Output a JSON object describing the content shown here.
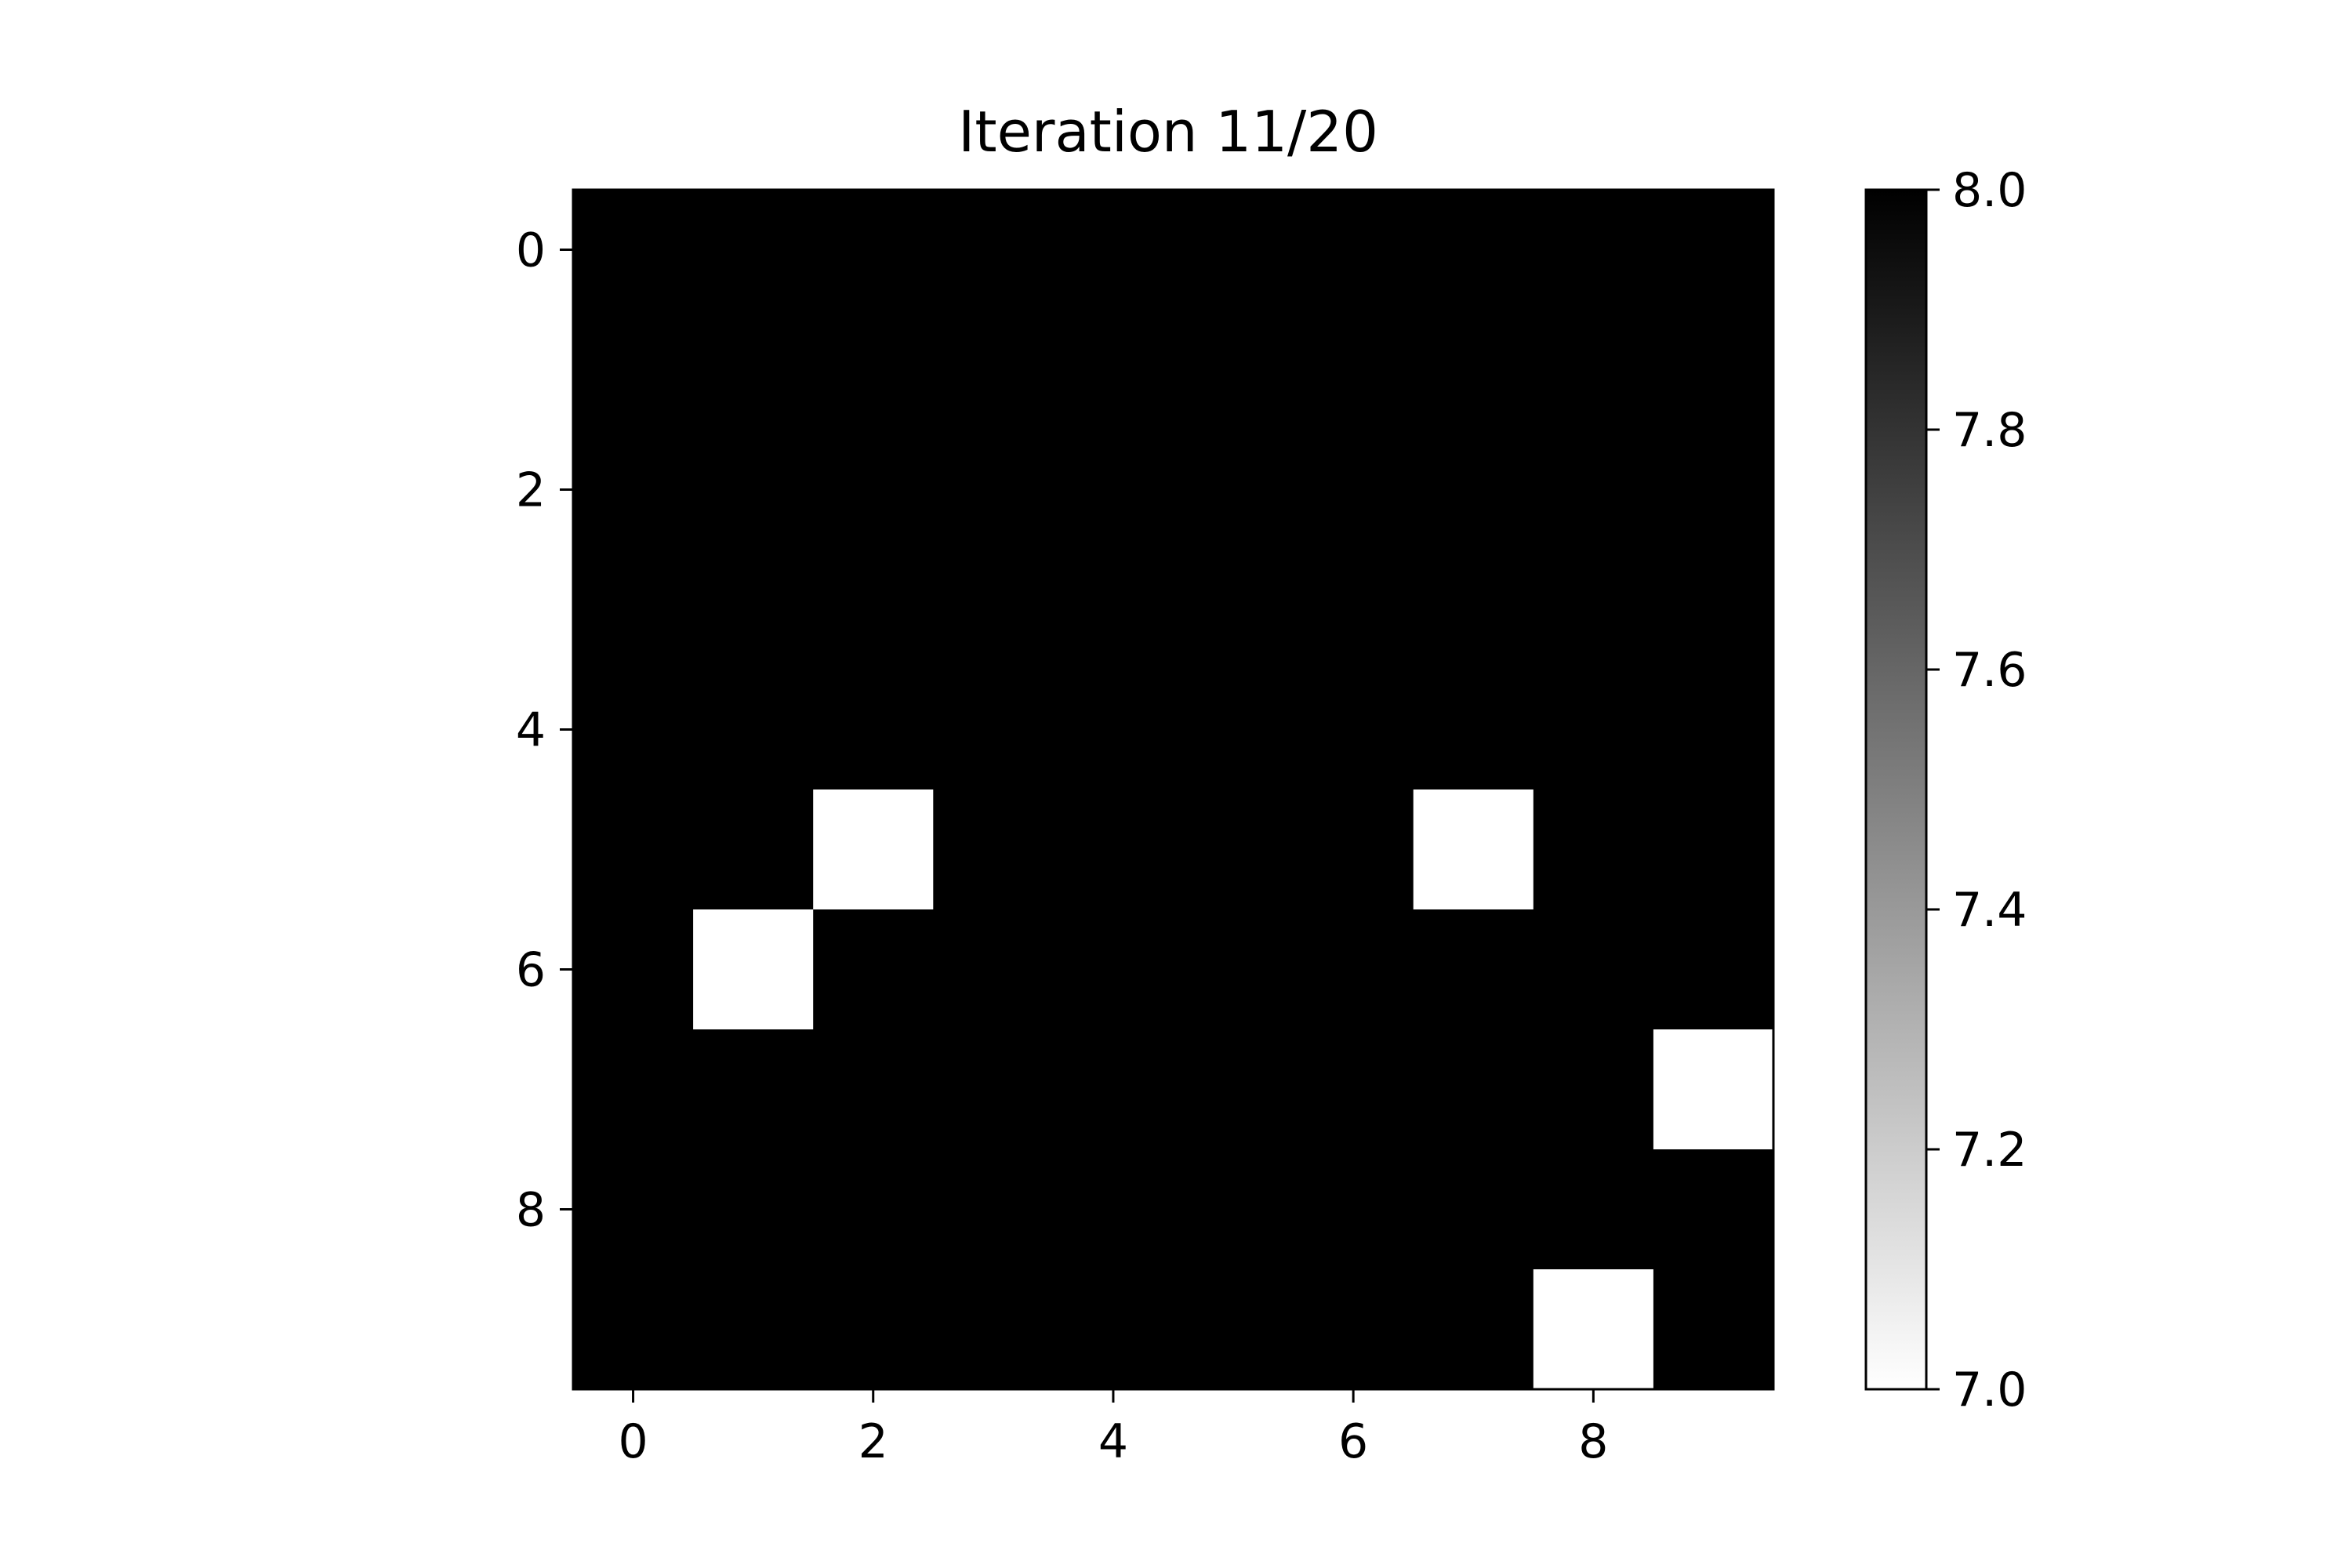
{
  "chart_data": {
    "type": "heatmap",
    "title": "Iteration 11/20",
    "xlabel": "",
    "ylabel": "",
    "rows": 10,
    "cols": 10,
    "x_ticks": [
      0,
      2,
      4,
      6,
      8
    ],
    "y_ticks": [
      0,
      2,
      4,
      6,
      8
    ],
    "x_tick_labels": [
      "0",
      "2",
      "4",
      "6",
      "8"
    ],
    "y_tick_labels": [
      "0",
      "2",
      "4",
      "6",
      "8"
    ],
    "values": [
      [
        8,
        8,
        8,
        8,
        8,
        8,
        8,
        8,
        8,
        8
      ],
      [
        8,
        8,
        8,
        8,
        8,
        8,
        8,
        8,
        8,
        8
      ],
      [
        8,
        8,
        8,
        8,
        8,
        8,
        8,
        8,
        8,
        8
      ],
      [
        8,
        8,
        8,
        8,
        8,
        8,
        8,
        8,
        8,
        8
      ],
      [
        8,
        8,
        8,
        8,
        8,
        8,
        8,
        8,
        8,
        8
      ],
      [
        8,
        8,
        7,
        8,
        8,
        8,
        8,
        7,
        8,
        8
      ],
      [
        8,
        7,
        8,
        8,
        8,
        8,
        8,
        8,
        8,
        8
      ],
      [
        8,
        8,
        8,
        8,
        8,
        8,
        8,
        8,
        8,
        7
      ],
      [
        8,
        8,
        8,
        8,
        8,
        8,
        8,
        8,
        8,
        8
      ],
      [
        8,
        8,
        8,
        8,
        8,
        8,
        8,
        8,
        7,
        8
      ]
    ],
    "colorbar": {
      "range": [
        7.0,
        8.0
      ],
      "cmap": "gray_r",
      "low_color": "#ffffff",
      "high_color": "#000000",
      "ticks": [
        7.0,
        7.2,
        7.4,
        7.6,
        7.8,
        8.0
      ],
      "tick_labels": [
        "7.0",
        "7.2",
        "7.4",
        "7.6",
        "7.8",
        "8.0"
      ]
    },
    "grid": false
  }
}
